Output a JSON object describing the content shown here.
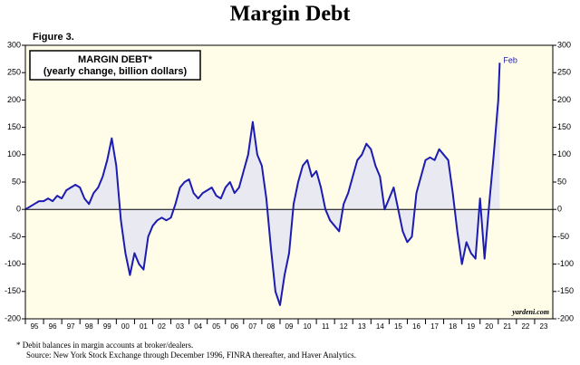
{
  "chart_data": {
    "type": "line",
    "title": "Margin Debt",
    "figure_label": "Figure 3.",
    "subtitle": "(yearly change, billion dollars)",
    "annotation": "Feb",
    "source_mark": "yardeni.com",
    "footnotes": [
      "*  Debit balances in margin accounts at broker/dealers.",
      "Source: New York Stock Exchange through December 1996, FINRA thereafter, and Haver Analytics."
    ],
    "x": [
      1995,
      1995.25,
      1995.5,
      1995.75,
      1996,
      1996.25,
      1996.5,
      1996.75,
      1997,
      1997.25,
      1997.5,
      1997.75,
      1998,
      1998.25,
      1998.5,
      1998.75,
      1999,
      1999.25,
      1999.5,
      1999.75,
      2000,
      2000.25,
      2000.5,
      2000.75,
      2001,
      2001.25,
      2001.5,
      2001.75,
      2002,
      2002.25,
      2002.5,
      2002.75,
      2003,
      2003.25,
      2003.5,
      2003.75,
      2004,
      2004.25,
      2004.5,
      2004.75,
      2005,
      2005.25,
      2005.5,
      2005.75,
      2006,
      2006.25,
      2006.5,
      2006.75,
      2007,
      2007.25,
      2007.5,
      2007.75,
      2008,
      2008.25,
      2008.5,
      2008.75,
      2009,
      2009.25,
      2009.5,
      2009.75,
      2010,
      2010.25,
      2010.5,
      2010.75,
      2011,
      2011.25,
      2011.5,
      2011.75,
      2012,
      2012.25,
      2012.5,
      2012.75,
      2013,
      2013.25,
      2013.5,
      2013.75,
      2014,
      2014.25,
      2014.5,
      2014.75,
      2015,
      2015.25,
      2015.5,
      2015.75,
      2016,
      2016.25,
      2016.5,
      2016.75,
      2017,
      2017.25,
      2017.5,
      2017.75,
      2018,
      2018.25,
      2018.5,
      2018.75,
      2019,
      2019.25,
      2019.5,
      2019.75,
      2020,
      2020.25,
      2020.5,
      2020.75,
      2021,
      2021.08
    ],
    "series": [
      {
        "name": "MARGIN DEBT*",
        "color": "#1c1cb0",
        "values": [
          0,
          5,
          10,
          15,
          15,
          20,
          15,
          25,
          20,
          35,
          40,
          45,
          40,
          20,
          10,
          30,
          40,
          60,
          90,
          130,
          80,
          -20,
          -80,
          -120,
          -80,
          -100,
          -110,
          -50,
          -30,
          -20,
          -15,
          -20,
          -15,
          10,
          40,
          50,
          55,
          30,
          20,
          30,
          35,
          40,
          25,
          20,
          40,
          50,
          30,
          40,
          70,
          100,
          160,
          100,
          80,
          20,
          -70,
          -150,
          -175,
          -120,
          -80,
          10,
          50,
          80,
          90,
          60,
          70,
          40,
          0,
          -20,
          -30,
          -40,
          10,
          30,
          60,
          90,
          100,
          120,
          110,
          80,
          60,
          0,
          20,
          40,
          0,
          -40,
          -60,
          -50,
          30,
          60,
          90,
          95,
          90,
          110,
          100,
          90,
          30,
          -40,
          -100,
          -60,
          -80,
          -90,
          20,
          -90,
          10,
          100,
          200,
          268
        ]
      }
    ],
    "xlim": [
      1995,
      2024
    ],
    "xticks": [
      {
        "value": 1995.5,
        "label": "95"
      },
      {
        "value": 1996.5,
        "label": "96"
      },
      {
        "value": 1997.5,
        "label": "97"
      },
      {
        "value": 1998.5,
        "label": "98"
      },
      {
        "value": 1999.5,
        "label": "99"
      },
      {
        "value": 2000.5,
        "label": "00"
      },
      {
        "value": 2001.5,
        "label": "01"
      },
      {
        "value": 2002.5,
        "label": "02"
      },
      {
        "value": 2003.5,
        "label": "03"
      },
      {
        "value": 2004.5,
        "label": "04"
      },
      {
        "value": 2005.5,
        "label": "05"
      },
      {
        "value": 2006.5,
        "label": "06"
      },
      {
        "value": 2007.5,
        "label": "07"
      },
      {
        "value": 2008.5,
        "label": "08"
      },
      {
        "value": 2009.5,
        "label": "09"
      },
      {
        "value": 2010.5,
        "label": "10"
      },
      {
        "value": 2011.5,
        "label": "11"
      },
      {
        "value": 2012.5,
        "label": "12"
      },
      {
        "value": 2013.5,
        "label": "13"
      },
      {
        "value": 2014.5,
        "label": "14"
      },
      {
        "value": 2015.5,
        "label": "15"
      },
      {
        "value": 2016.5,
        "label": "16"
      },
      {
        "value": 2017.5,
        "label": "17"
      },
      {
        "value": 2018.5,
        "label": "18"
      },
      {
        "value": 2019.5,
        "label": "19"
      },
      {
        "value": 2020.5,
        "label": "20"
      },
      {
        "value": 2021.5,
        "label": "21"
      },
      {
        "value": 2022.5,
        "label": "22"
      },
      {
        "value": 2023.5,
        "label": "23"
      }
    ],
    "ylim": [
      -200,
      300
    ],
    "yticks": [
      -200,
      -150,
      -100,
      -50,
      0,
      50,
      100,
      150,
      200,
      250,
      300
    ],
    "y2lim": [
      -200,
      300
    ],
    "y2ticks": [
      -200,
      -150,
      -100,
      -50,
      0,
      50,
      100,
      150,
      200,
      250,
      300
    ],
    "plot_background": "#fffde8",
    "area_fill": "#e9e9f1"
  }
}
